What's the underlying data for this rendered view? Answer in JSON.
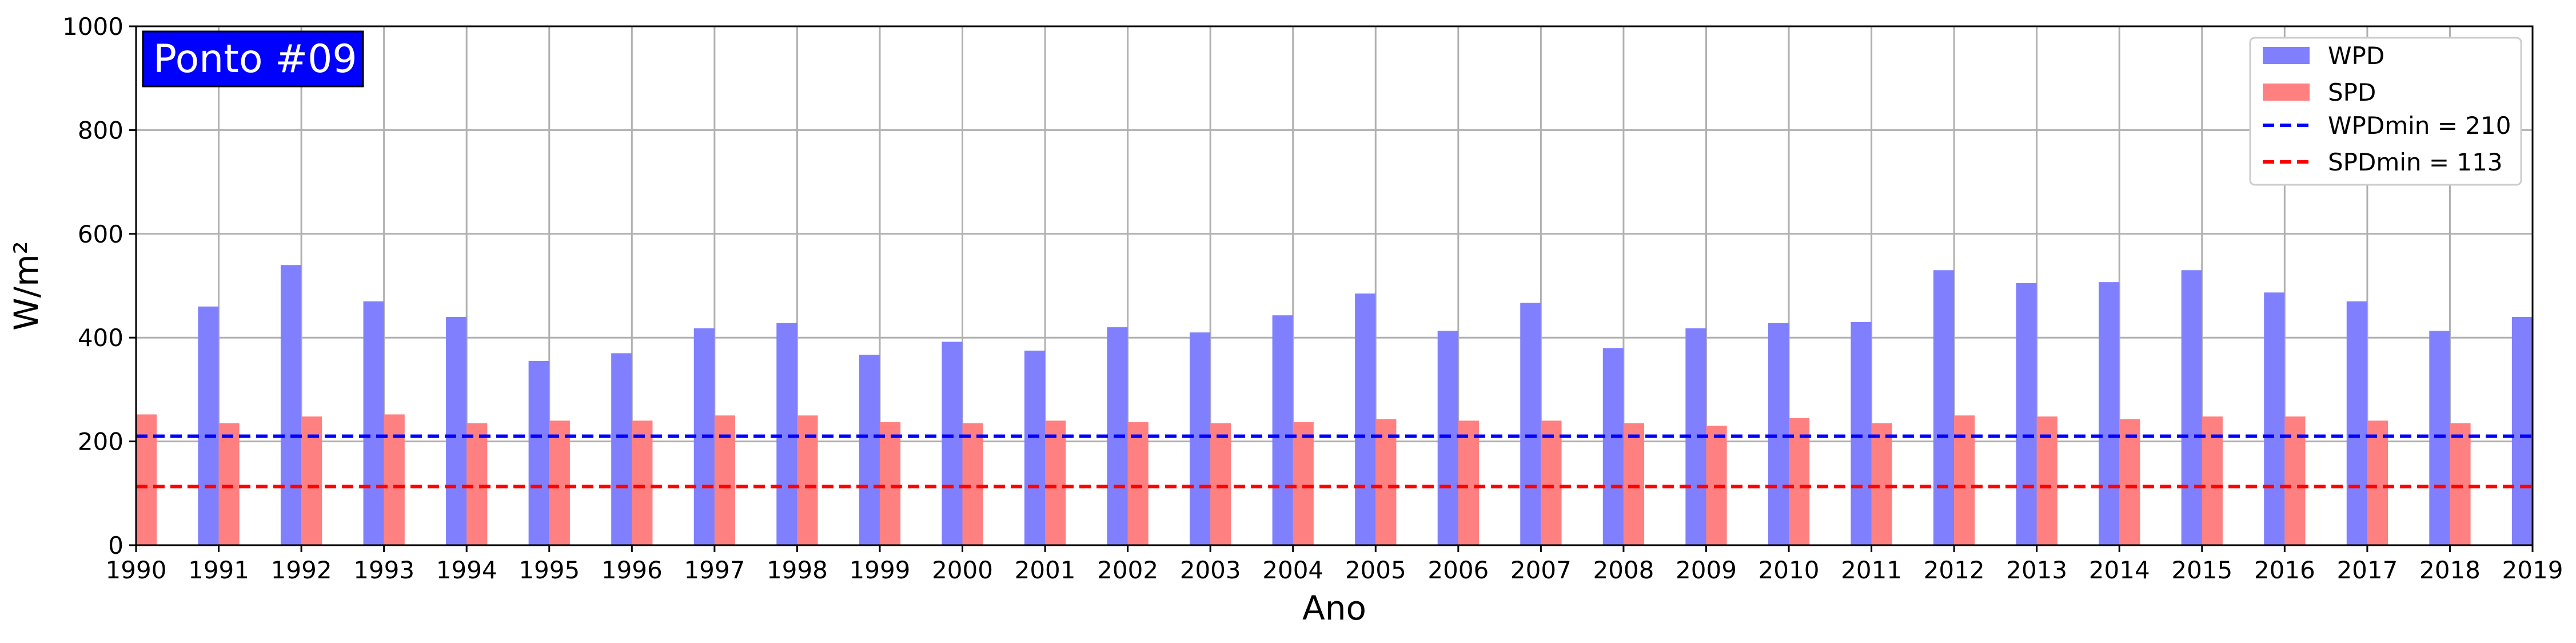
{
  "chart_data": {
    "type": "bar",
    "badge": "Ponto #09",
    "xlabel": "Ano",
    "ylabel": "W/m²",
    "xlim": [
      1990,
      2019
    ],
    "ylim": [
      0,
      1000
    ],
    "yticks": [
      0,
      200,
      400,
      600,
      800,
      1000
    ],
    "xticks": [
      1990,
      1991,
      1992,
      1993,
      1994,
      1995,
      1996,
      1997,
      1998,
      1999,
      2000,
      2001,
      2002,
      2003,
      2004,
      2005,
      2006,
      2007,
      2008,
      2009,
      2010,
      2011,
      2012,
      2013,
      2014,
      2015,
      2016,
      2017,
      2018,
      2019
    ],
    "grid": true,
    "legend_position": "top-right",
    "series": [
      {
        "name": "WPD",
        "color": "#8080ff",
        "x": [
          1991,
          1992,
          1993,
          1994,
          1995,
          1996,
          1997,
          1998,
          1999,
          2000,
          2001,
          2002,
          2003,
          2004,
          2005,
          2006,
          2007,
          2008,
          2009,
          2010,
          2011,
          2012,
          2013,
          2014,
          2015,
          2016,
          2017,
          2018,
          2019
        ],
        "values": [
          460,
          540,
          470,
          440,
          355,
          370,
          418,
          428,
          367,
          392,
          375,
          420,
          410,
          443,
          485,
          413,
          467,
          380,
          418,
          428,
          430,
          530,
          505,
          507,
          530,
          487,
          470,
          413,
          440
        ]
      },
      {
        "name": "SPD",
        "color": "#ff8080",
        "x": [
          1990,
          1991,
          1992,
          1993,
          1994,
          1995,
          1996,
          1997,
          1998,
          1999,
          2000,
          2001,
          2002,
          2003,
          2004,
          2005,
          2006,
          2007,
          2008,
          2009,
          2010,
          2011,
          2012,
          2013,
          2014,
          2015,
          2016,
          2017,
          2018
        ],
        "values": [
          252,
          235,
          248,
          252,
          235,
          240,
          240,
          250,
          250,
          237,
          235,
          240,
          237,
          235,
          237,
          243,
          240,
          240,
          235,
          230,
          245,
          235,
          250,
          248,
          243,
          248,
          248,
          240,
          235
        ]
      }
    ],
    "reference_lines": [
      {
        "name": "WPDmin = 210",
        "value": 210,
        "color": "#0000ff"
      },
      {
        "name": "SPDmin = 113",
        "value": 113,
        "color": "#ff0000"
      }
    ]
  }
}
